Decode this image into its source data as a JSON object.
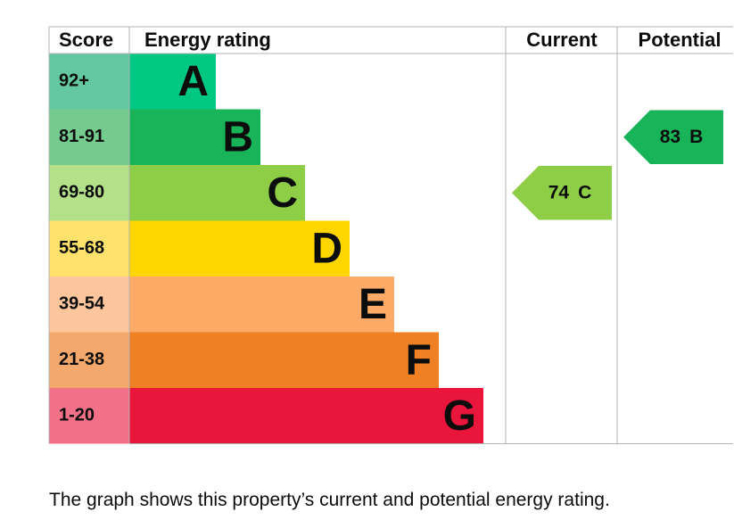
{
  "chart_data": {
    "type": "epc",
    "headers": [
      "Score",
      "Energy rating",
      "Current",
      "Potential"
    ],
    "bands": [
      {
        "score": "92+",
        "letter": "A",
        "color": "#00c781",
        "score_color": "#64c8a2"
      },
      {
        "score": "81-91",
        "letter": "B",
        "color": "#19b459",
        "score_color": "#75cb8e"
      },
      {
        "score": "69-80",
        "letter": "C",
        "color": "#8dce46",
        "score_color": "#b4e08a"
      },
      {
        "score": "55-68",
        "letter": "D",
        "color": "#ffd500",
        "score_color": "#ffe26b"
      },
      {
        "score": "39-54",
        "letter": "E",
        "color": "#fcaa65",
        "score_color": "#fdc59b"
      },
      {
        "score": "21-38",
        "letter": "F",
        "color": "#ef8023",
        "score_color": "#f4a86b"
      },
      {
        "score": "1-20",
        "letter": "G",
        "color": "#e9153b",
        "score_color": "#f27189"
      }
    ],
    "current": {
      "value": 74,
      "letter": "C"
    },
    "potential": {
      "value": 83,
      "letter": "B"
    },
    "caption": "The graph shows this property’s current and potential energy rating."
  }
}
